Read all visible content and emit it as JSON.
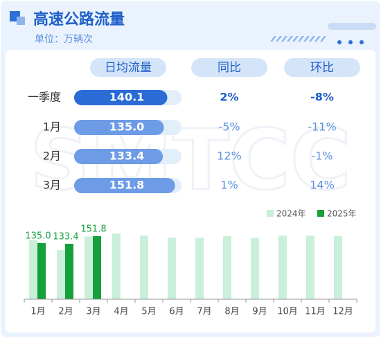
{
  "header": {
    "title": "高速公路流量",
    "subtitle": "单位：万辆次"
  },
  "watermark": "SMTCC",
  "table": {
    "columns": [
      "日均流量",
      "同比",
      "环比"
    ],
    "rows": [
      {
        "name": "一季度",
        "flow": 140.1,
        "flow_label": "140.1",
        "yoy": "2%",
        "mom": "-8%"
      },
      {
        "name": "1月",
        "flow": 135.0,
        "flow_label": "135.0",
        "yoy": "-5%",
        "mom": "-11%"
      },
      {
        "name": "2月",
        "flow": 133.4,
        "flow_label": "133.4",
        "yoy": "12%",
        "mom": "-1%"
      },
      {
        "name": "3月",
        "flow": 151.8,
        "flow_label": "151.8",
        "yoy": "1%",
        "mom": "14%"
      }
    ]
  },
  "chart_data": {
    "type": "bar",
    "categories": [
      "1月",
      "2月",
      "3月",
      "4月",
      "5月",
      "6月",
      "7月",
      "8月",
      "9月",
      "10月",
      "11月",
      "12月"
    ],
    "series": [
      {
        "name": "2024年",
        "color": "#c9f0d9",
        "values": [
          142,
          118,
          151,
          158,
          153,
          148,
          148,
          152,
          148,
          153,
          153,
          152
        ]
      },
      {
        "name": "2025年",
        "color": "#16a03c",
        "values": [
          135.0,
          133.4,
          151.8,
          null,
          null,
          null,
          null,
          null,
          null,
          null,
          null,
          null
        ],
        "value_labels": [
          "135.0",
          "133.4",
          "151.8",
          null,
          null,
          null,
          null,
          null,
          null,
          null,
          null,
          null
        ]
      }
    ],
    "ylim": [
      0,
      160
    ]
  }
}
